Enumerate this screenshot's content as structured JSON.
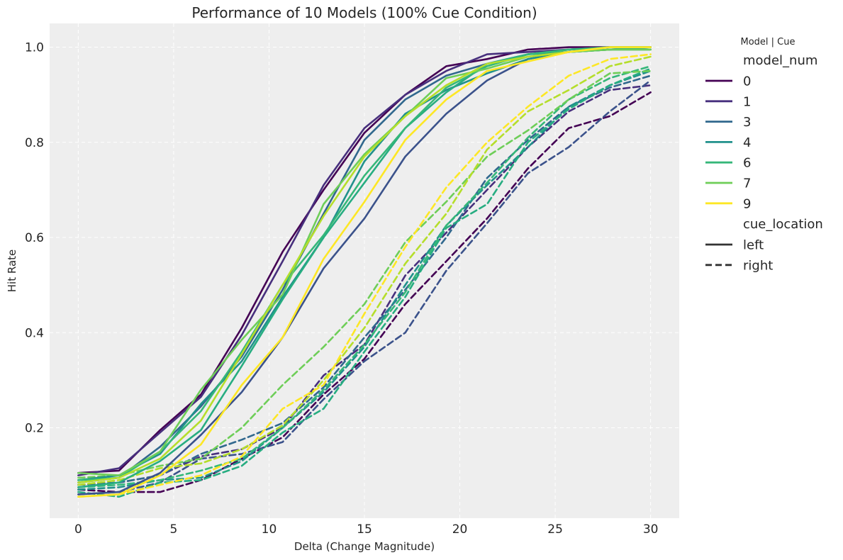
{
  "chart_data": {
    "type": "line",
    "title": "Performance of 10 Models (100% Cue Condition)",
    "xlabel": "Delta (Change Magnitude)",
    "ylabel": "Hit Rate",
    "xlim": [
      -1.5,
      31.5
    ],
    "ylim": [
      0.01,
      1.05
    ],
    "xticks": [
      0,
      5,
      10,
      15,
      20,
      25,
      30
    ],
    "yticks": [
      0.2,
      0.4,
      0.6,
      0.8,
      1.0
    ],
    "ytick_labels": [
      "0.2",
      "0.4",
      "0.6",
      "0.8",
      "1.0"
    ],
    "xtick_labels": [
      "0",
      "5",
      "10",
      "15",
      "20",
      "25",
      "30"
    ],
    "grid": true,
    "x": [
      0,
      2.14,
      4.29,
      6.43,
      8.57,
      10.71,
      12.86,
      15,
      17.14,
      19.29,
      21.43,
      23.57,
      25.71,
      27.86,
      30
    ],
    "legend": {
      "title": "Model | Cue",
      "hue_title": "model_num",
      "style_title": "cue_location",
      "placement": "outside-right",
      "hue_entries": [
        {
          "label": "0",
          "color": "#440154"
        },
        {
          "label": "1",
          "color": "#472f7d"
        },
        {
          "label": "3",
          "color": "#31688e"
        },
        {
          "label": "4",
          "color": "#21918c"
        },
        {
          "label": "6",
          "color": "#35b779"
        },
        {
          "label": "7",
          "color": "#6ece58"
        },
        {
          "label": "9",
          "color": "#fde725"
        }
      ],
      "style_entries": [
        {
          "label": "left",
          "dash": "solid"
        },
        {
          "label": "right",
          "dash": "dashed"
        }
      ]
    },
    "series": [
      {
        "model": "0",
        "cue": "left",
        "color": "#440154",
        "values": [
          0.105,
          0.11,
          0.195,
          0.27,
          0.41,
          0.57,
          0.7,
          0.82,
          0.9,
          0.96,
          0.975,
          0.995,
          1.0,
          1.0,
          1.0
        ]
      },
      {
        "model": "1",
        "cue": "left",
        "color": "#472f7d",
        "values": [
          0.1,
          0.115,
          0.19,
          0.265,
          0.395,
          0.55,
          0.71,
          0.83,
          0.9,
          0.95,
          0.985,
          0.99,
          0.995,
          1.0,
          1.0
        ]
      },
      {
        "model": "2",
        "cue": "left",
        "color": "#3b528b",
        "values": [
          0.06,
          0.065,
          0.105,
          0.185,
          0.275,
          0.39,
          0.535,
          0.64,
          0.77,
          0.86,
          0.93,
          0.975,
          0.99,
          0.995,
          1.0
        ]
      },
      {
        "model": "3",
        "cue": "left",
        "color": "#31688e",
        "values": [
          0.085,
          0.095,
          0.16,
          0.245,
          0.35,
          0.49,
          0.65,
          0.805,
          0.89,
          0.94,
          0.965,
          0.985,
          0.995,
          1.0,
          1.0
        ]
      },
      {
        "model": "4",
        "cue": "left",
        "color": "#21918c",
        "values": [
          0.09,
          0.1,
          0.145,
          0.25,
          0.34,
          0.475,
          0.6,
          0.76,
          0.86,
          0.91,
          0.945,
          0.975,
          0.99,
          0.995,
          0.995
        ]
      },
      {
        "model": "5",
        "cue": "left",
        "color": "#27ad81",
        "values": [
          0.075,
          0.085,
          0.13,
          0.195,
          0.33,
          0.47,
          0.6,
          0.715,
          0.83,
          0.905,
          0.965,
          0.985,
          0.99,
          0.995,
          1.0
        ]
      },
      {
        "model": "6",
        "cue": "left",
        "color": "#35b779",
        "values": [
          0.09,
          0.095,
          0.15,
          0.235,
          0.36,
          0.5,
          0.605,
          0.73,
          0.83,
          0.915,
          0.96,
          0.985,
          0.995,
          1.0,
          1.0
        ]
      },
      {
        "model": "7",
        "cue": "left",
        "color": "#6ece58",
        "values": [
          0.105,
          0.1,
          0.15,
          0.28,
          0.385,
          0.48,
          0.67,
          0.775,
          0.855,
          0.935,
          0.955,
          0.98,
          0.99,
          0.995,
          0.995
        ]
      },
      {
        "model": "8",
        "cue": "left",
        "color": "#b5de2b",
        "values": [
          0.085,
          0.095,
          0.135,
          0.215,
          0.355,
          0.5,
          0.645,
          0.77,
          0.855,
          0.92,
          0.965,
          0.98,
          0.99,
          1.0,
          1.0
        ]
      },
      {
        "model": "9",
        "cue": "left",
        "color": "#fde725",
        "values": [
          0.055,
          0.06,
          0.1,
          0.165,
          0.29,
          0.39,
          0.555,
          0.675,
          0.805,
          0.89,
          0.95,
          0.97,
          0.99,
          1.0,
          1.0
        ]
      },
      {
        "model": "0",
        "cue": "right",
        "color": "#440154",
        "values": [
          0.07,
          0.065,
          0.065,
          0.09,
          0.135,
          0.18,
          0.27,
          0.345,
          0.46,
          0.55,
          0.64,
          0.745,
          0.83,
          0.855,
          0.905
        ]
      },
      {
        "model": "1",
        "cue": "right",
        "color": "#472f7d",
        "values": [
          0.08,
          0.085,
          0.1,
          0.14,
          0.155,
          0.2,
          0.31,
          0.375,
          0.52,
          0.61,
          0.7,
          0.79,
          0.865,
          0.91,
          0.92
        ]
      },
      {
        "model": "2",
        "cue": "right",
        "color": "#3b528b",
        "values": [
          0.06,
          0.065,
          0.085,
          0.135,
          0.145,
          0.17,
          0.26,
          0.34,
          0.4,
          0.53,
          0.63,
          0.735,
          0.79,
          0.865,
          0.93
        ]
      },
      {
        "model": "3",
        "cue": "right",
        "color": "#31688e",
        "values": [
          0.08,
          0.085,
          0.1,
          0.145,
          0.175,
          0.21,
          0.285,
          0.39,
          0.49,
          0.6,
          0.725,
          0.805,
          0.875,
          0.915,
          0.94
        ]
      },
      {
        "model": "4",
        "cue": "right",
        "color": "#21918c",
        "values": [
          0.07,
          0.075,
          0.09,
          0.095,
          0.13,
          0.2,
          0.275,
          0.37,
          0.5,
          0.625,
          0.71,
          0.79,
          0.875,
          0.92,
          0.95
        ]
      },
      {
        "model": "5",
        "cue": "right",
        "color": "#27ad81",
        "values": [
          0.065,
          0.055,
          0.085,
          0.09,
          0.12,
          0.19,
          0.24,
          0.36,
          0.475,
          0.62,
          0.67,
          0.8,
          0.87,
          0.92,
          0.955
        ]
      },
      {
        "model": "6",
        "cue": "right",
        "color": "#35b779",
        "values": [
          0.075,
          0.08,
          0.09,
          0.11,
          0.135,
          0.2,
          0.28,
          0.375,
          0.485,
          0.625,
          0.715,
          0.81,
          0.89,
          0.935,
          0.96
        ]
      },
      {
        "model": "7",
        "cue": "right",
        "color": "#6ece58",
        "values": [
          0.095,
          0.1,
          0.12,
          0.135,
          0.2,
          0.29,
          0.37,
          0.46,
          0.59,
          0.675,
          0.77,
          0.825,
          0.89,
          0.945,
          0.95
        ]
      },
      {
        "model": "8",
        "cue": "right",
        "color": "#b5de2b",
        "values": [
          0.08,
          0.09,
          0.115,
          0.125,
          0.155,
          0.205,
          0.3,
          0.41,
          0.545,
          0.65,
          0.785,
          0.865,
          0.91,
          0.96,
          0.98
        ]
      },
      {
        "model": "9",
        "cue": "right",
        "color": "#fde725",
        "values": [
          0.055,
          0.06,
          0.08,
          0.1,
          0.14,
          0.24,
          0.29,
          0.44,
          0.58,
          0.705,
          0.8,
          0.875,
          0.94,
          0.975,
          0.985
        ]
      }
    ]
  }
}
